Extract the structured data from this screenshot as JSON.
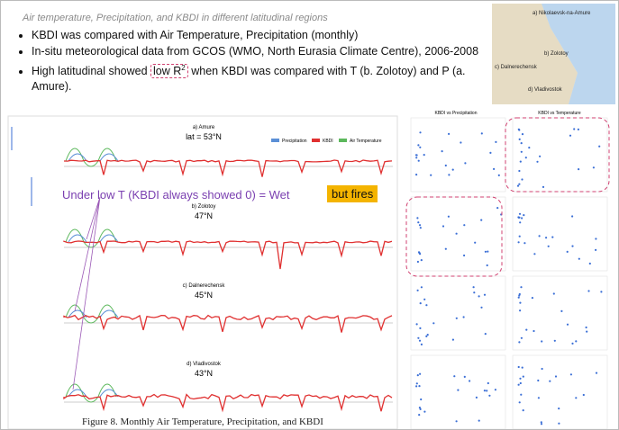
{
  "title": "Air temperature, Precipitation, and KBDI in different latitudinal regions",
  "bullets": [
    "KBDI was compared with Air Temperature, Precipitation (monthly)",
    "In-situ meteorological data from GCOS (WMO, North Eurasia Climate Centre), 2006-2008",
    {
      "before": "High latitudinal showed ",
      "boxed": "low R",
      "sup": "2",
      "after": " when KBDI was compared with T (b. Zolotoy) and P (a. Amure)."
    }
  ],
  "map_labels": [
    "a) Nikolaevsk-na-Amure",
    "b) Zolotoy",
    "c) Dalnerechensk",
    "d) Vladivostok"
  ],
  "legend": [
    "Precipitation",
    "KBDI",
    "Air Temperature"
  ],
  "panels": [
    {
      "name": "a) Amure",
      "lat": "lat = 53°N"
    },
    {
      "name": "b) Zolotoy",
      "lat": "47°N"
    },
    {
      "name": "c) Dalnerechensk",
      "lat": "45°N"
    },
    {
      "name": "d) Vladivostok",
      "lat": "43°N"
    }
  ],
  "annotation": "Under low T (KBDI always showed 0) = Wet",
  "highlight": "but fires",
  "scatter_headers": [
    "KBDI vs Precipitation",
    "KBDI vs Temperature"
  ],
  "caption": "Figure 8. Monthly Air Temperature, Precipitation, and KBDI"
}
